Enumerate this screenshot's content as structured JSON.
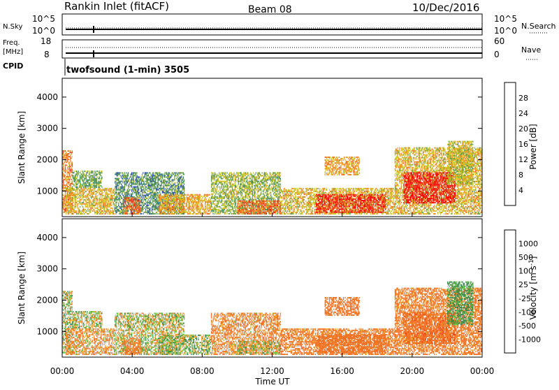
{
  "header": {
    "station": "Rankin Inlet (fitACF)",
    "beam": "Beam 08",
    "date": "10/Dec/2016"
  },
  "noise_panel": {
    "left_label": "N.Sky",
    "right_label": "N.Search",
    "left_ticks": [
      "10^5",
      "10^0"
    ],
    "right_ticks": [
      "10^5",
      "10^0"
    ]
  },
  "freq_panel": {
    "left_label_1": "Freq.",
    "left_label_2": "[MHz]",
    "right_label": "Nave",
    "left_ticks": [
      "18",
      "8"
    ],
    "right_ticks": [
      "60",
      "0"
    ]
  },
  "cpid": {
    "label": "CPID",
    "value": "twofsound (1-min) 3505"
  },
  "x_axis": {
    "label": "Time UT",
    "ticks": [
      "00:00",
      "04:00",
      "08:00",
      "12:00",
      "16:00",
      "20:00",
      "00:00"
    ]
  },
  "colors": {
    "power": [
      "#1a1aff",
      "#2a4fb0",
      "#3c8a5c",
      "#6aa04a",
      "#c8c820",
      "#f0a020",
      "#f07020",
      "#e84020",
      "#ff0000"
    ],
    "velocity": [
      "#ff0000",
      "#f04010",
      "#f07020",
      "#f0a020",
      "#c8c8c8",
      "#c8c8c8",
      "#60c040",
      "#3a8a4a",
      "#2a6a8a",
      "#1a40c0"
    ]
  },
  "chart_data": [
    {
      "type": "heatmap",
      "title": "Power",
      "ylabel": "Slant Range [km]",
      "xlabel": "",
      "colorbar_label": "Power [dB]",
      "colorbar_ticks": [
        "28",
        "24",
        "20",
        "16",
        "12",
        "8",
        "4"
      ],
      "y_ticks": [
        "4000",
        "3000",
        "2000",
        "1000"
      ],
      "xlim": [
        0,
        24
      ],
      "ylim": [
        180,
        4600
      ],
      "clim": [
        0,
        32
      ],
      "regions": [
        {
          "t0": 0.0,
          "t1": 0.6,
          "r0": 300,
          "r1": 2300,
          "v": 22
        },
        {
          "t0": 0.2,
          "t1": 3.0,
          "r0": 250,
          "r1": 1100,
          "v": 18
        },
        {
          "t0": 0.6,
          "t1": 2.3,
          "r0": 1100,
          "r1": 1650,
          "v": 12
        },
        {
          "t0": 3.0,
          "t1": 7.0,
          "r0": 250,
          "r1": 1600,
          "v": 10
        },
        {
          "t0": 3.5,
          "t1": 4.5,
          "r0": 250,
          "r1": 800,
          "v": 24
        },
        {
          "t0": 5.5,
          "t1": 8.5,
          "r0": 250,
          "r1": 900,
          "v": 20
        },
        {
          "t0": 8.5,
          "t1": 12.5,
          "r0": 250,
          "r1": 1600,
          "v": 14
        },
        {
          "t0": 10.0,
          "t1": 12.5,
          "r0": 250,
          "r1": 700,
          "v": 24
        },
        {
          "t0": 12.5,
          "t1": 19.0,
          "r0": 250,
          "r1": 1100,
          "v": 18
        },
        {
          "t0": 14.5,
          "t1": 18.5,
          "r0": 300,
          "r1": 900,
          "v": 28
        },
        {
          "t0": 15.0,
          "t1": 17.0,
          "r0": 1500,
          "r1": 2100,
          "v": 20
        },
        {
          "t0": 19.0,
          "t1": 24.0,
          "r0": 250,
          "r1": 2400,
          "v": 18
        },
        {
          "t0": 19.5,
          "t1": 22.5,
          "r0": 600,
          "r1": 1600,
          "v": 30
        },
        {
          "t0": 22.0,
          "t1": 23.5,
          "r0": 1200,
          "r1": 2600,
          "v": 16
        }
      ]
    },
    {
      "type": "heatmap",
      "title": "Velocity",
      "ylabel": "Slant Range [km]",
      "xlabel": "Time UT",
      "colorbar_label": "Velocity [m s^-1]",
      "colorbar_ticks": [
        "1000",
        "500",
        "100",
        "25",
        "-25",
        "-100",
        "-500",
        "-1000"
      ],
      "y_ticks": [
        "4000",
        "3000",
        "2000",
        "1000"
      ],
      "xlim": [
        0,
        24
      ],
      "ylim": [
        180,
        4600
      ],
      "regions": [
        {
          "t0": 0.0,
          "t1": 0.6,
          "r0": 300,
          "r1": 2300,
          "v": 25
        },
        {
          "t0": 0.2,
          "t1": 3.0,
          "r0": 250,
          "r1": 1100,
          "v": -100
        },
        {
          "t0": 0.6,
          "t1": 2.3,
          "r0": 1100,
          "r1": 1650,
          "v": 0
        },
        {
          "t0": 3.0,
          "t1": 7.0,
          "r0": 250,
          "r1": 1600,
          "v": 0
        },
        {
          "t0": 3.5,
          "t1": 4.5,
          "r0": 250,
          "r1": 800,
          "v": -150
        },
        {
          "t0": 5.5,
          "t1": 8.5,
          "r0": 250,
          "r1": 900,
          "v": 50
        },
        {
          "t0": 8.5,
          "t1": 12.5,
          "r0": 250,
          "r1": 1600,
          "v": -120
        },
        {
          "t0": 10.0,
          "t1": 12.5,
          "r0": 250,
          "r1": 700,
          "v": 0
        },
        {
          "t0": 12.5,
          "t1": 19.0,
          "r0": 250,
          "r1": 1100,
          "v": -200
        },
        {
          "t0": 14.5,
          "t1": 18.5,
          "r0": 300,
          "r1": 900,
          "v": -300
        },
        {
          "t0": 15.0,
          "t1": 17.0,
          "r0": 1500,
          "r1": 2100,
          "v": -300
        },
        {
          "t0": 19.0,
          "t1": 24.0,
          "r0": 250,
          "r1": 2400,
          "v": -200
        },
        {
          "t0": 19.5,
          "t1": 22.5,
          "r0": 600,
          "r1": 1600,
          "v": -400
        },
        {
          "t0": 22.0,
          "t1": 23.5,
          "r0": 1200,
          "r1": 2600,
          "v": 150
        }
      ]
    }
  ]
}
